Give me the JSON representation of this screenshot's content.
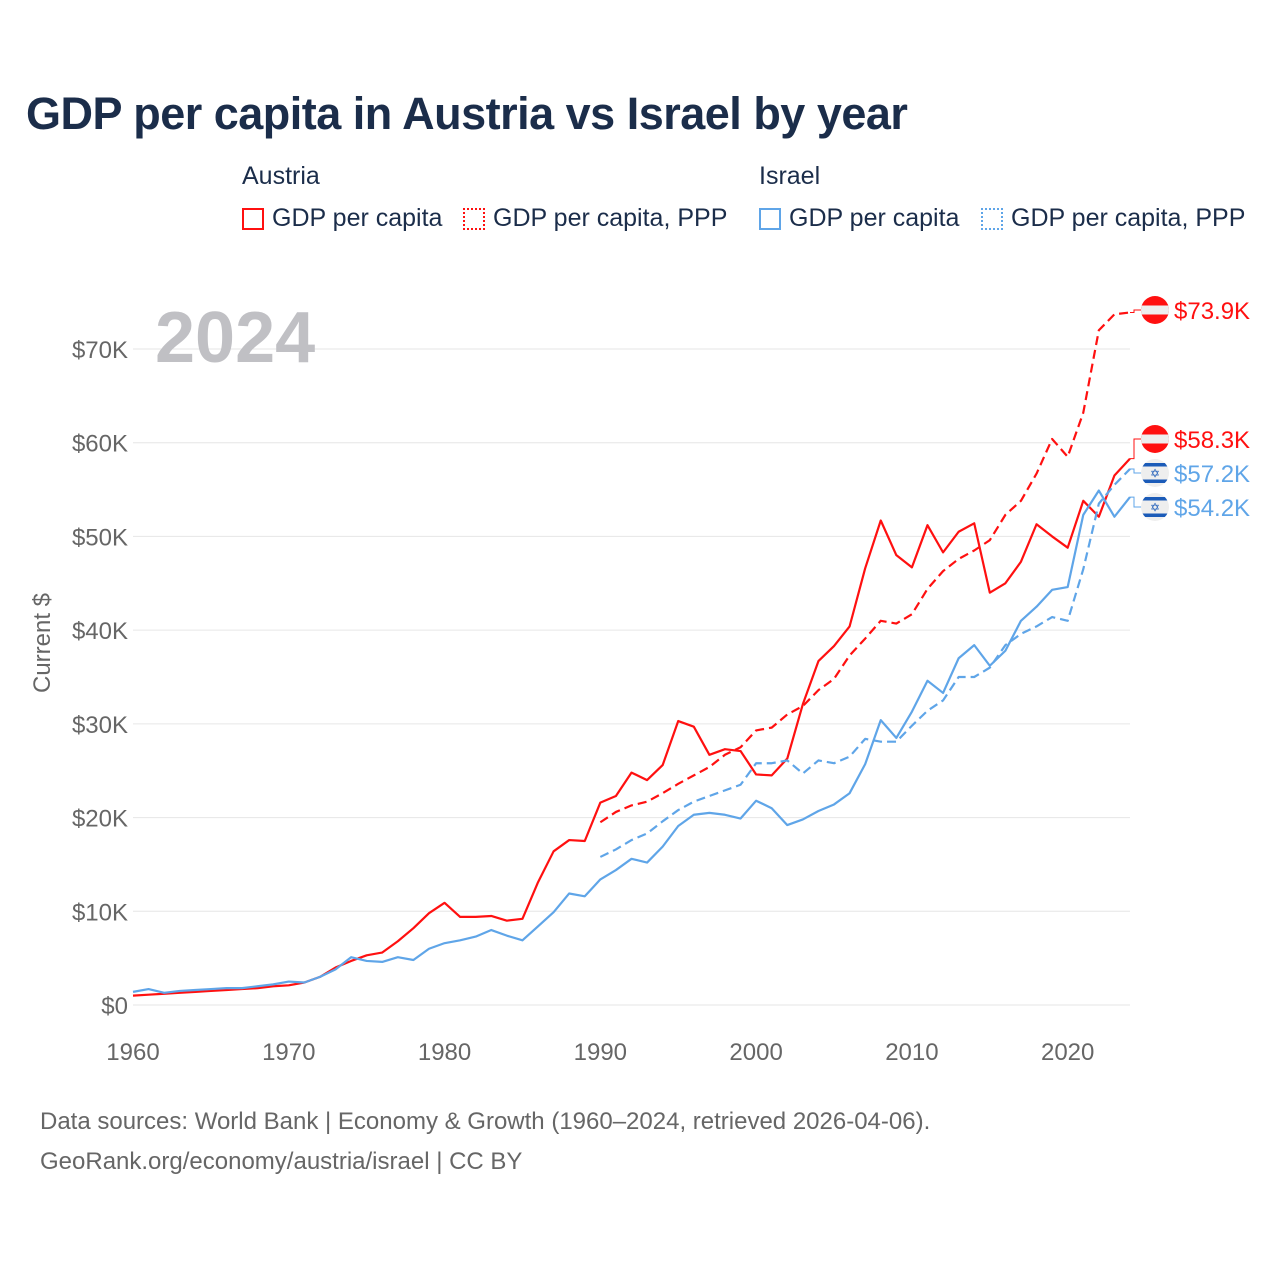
{
  "title": "GDP per capita in Austria vs Israel by year",
  "legend": {
    "groups": [
      {
        "name": "Austria",
        "items": [
          "GDP per capita",
          "GDP per capita, PPP"
        ]
      },
      {
        "name": "Israel",
        "items": [
          "GDP per capita",
          "GDP per capita, PPP"
        ]
      }
    ]
  },
  "year_label": "2024",
  "end_labels": [
    "$73.9K",
    "$58.3K",
    "$57.2K",
    "$54.2K"
  ],
  "source": {
    "line1": "Data sources: World Bank | Economy & Growth (1960–2024, retrieved 2026-04-06).",
    "line2": "GeoRank.org/economy/austria/israel | CC BY"
  },
  "colors": {
    "austria": "#ff1010",
    "israel": "#5fa5e8",
    "grid": "#e6e6e6",
    "axis_text": "#666666"
  },
  "chart_data": {
    "type": "line",
    "title": "GDP per capita in Austria vs Israel by year",
    "xlabel": "",
    "ylabel": "Current $",
    "xlim": [
      1960,
      2024
    ],
    "ylim": [
      0,
      70000
    ],
    "xticks": [
      1960,
      1970,
      1980,
      1990,
      2000,
      2010,
      2020
    ],
    "xtick_labels": [
      "1960",
      "1970",
      "1980",
      "1990",
      "2000",
      "2010",
      "2020"
    ],
    "yticks": [
      0,
      10000,
      20000,
      30000,
      40000,
      50000,
      60000,
      70000
    ],
    "ytick_labels": [
      "$0",
      "$10K",
      "$20K",
      "$30K",
      "$40K",
      "$50K",
      "$60K",
      "$70K"
    ],
    "grid": true,
    "legend_placement": "top",
    "series": [
      {
        "name": "Austria GDP per capita",
        "country": "Austria",
        "dashed": false,
        "start": 1960,
        "values_k": [
          1.0,
          1.1,
          1.2,
          1.3,
          1.4,
          1.5,
          1.6,
          1.7,
          1.8,
          2.0,
          2.1,
          2.4,
          3.0,
          4.0,
          4.7,
          5.3,
          5.6,
          6.8,
          8.2,
          9.8,
          10.9,
          9.4,
          9.4,
          9.5,
          9.0,
          9.2,
          13.1,
          16.4,
          17.6,
          17.5,
          21.6,
          22.3,
          24.8,
          24.0,
          25.6,
          30.3,
          29.7,
          26.7,
          27.3,
          27.1,
          24.6,
          24.5,
          26.3,
          32.1,
          36.7,
          38.3,
          40.4,
          46.6,
          51.7,
          48.0,
          46.7,
          51.2,
          48.3,
          50.5,
          51.4,
          44.0,
          45.0,
          47.3,
          51.3,
          50.0,
          48.8,
          53.8,
          52.1,
          56.5,
          58.3
        ]
      },
      {
        "name": "Austria GDP per capita, PPP",
        "country": "Austria",
        "dashed": true,
        "start": 1990,
        "values_k": [
          19.5,
          20.6,
          21.3,
          21.7,
          22.6,
          23.6,
          24.5,
          25.4,
          26.7,
          27.5,
          29.3,
          29.6,
          31.0,
          31.9,
          33.6,
          34.8,
          37.3,
          39.1,
          41.0,
          40.7,
          41.7,
          44.4,
          46.3,
          47.6,
          48.5,
          49.6,
          52.3,
          53.8,
          56.7,
          60.4,
          58.5,
          63.2,
          72.0,
          73.7,
          73.9
        ]
      },
      {
        "name": "Israel GDP per capita",
        "country": "Israel",
        "dashed": false,
        "start": 1960,
        "values_k": [
          1.4,
          1.7,
          1.3,
          1.5,
          1.6,
          1.7,
          1.8,
          1.8,
          2.0,
          2.2,
          2.5,
          2.4,
          3.0,
          3.8,
          5.1,
          4.7,
          4.6,
          5.1,
          4.8,
          6.0,
          6.6,
          6.9,
          7.3,
          8.0,
          7.4,
          6.9,
          8.4,
          9.9,
          11.9,
          11.6,
          13.4,
          14.4,
          15.6,
          15.2,
          16.9,
          19.1,
          20.3,
          20.5,
          20.3,
          19.9,
          21.8,
          21.0,
          19.2,
          19.8,
          20.7,
          21.4,
          22.6,
          25.7,
          30.4,
          28.5,
          31.3,
          34.6,
          33.3,
          37.0,
          38.4,
          36.2,
          37.8,
          41.0,
          42.5,
          44.3,
          44.6,
          52.3,
          54.9,
          52.1,
          54.2
        ]
      },
      {
        "name": "Israel GDP per capita, PPP",
        "country": "Israel",
        "dashed": true,
        "start": 1990,
        "values_k": [
          15.8,
          16.6,
          17.6,
          18.3,
          19.6,
          20.8,
          21.7,
          22.3,
          22.9,
          23.5,
          25.8,
          25.8,
          26.1,
          24.7,
          26.1,
          25.8,
          26.5,
          28.4,
          28.1,
          28.1,
          29.8,
          31.4,
          32.5,
          35.0,
          35.0,
          36.0,
          38.4,
          39.6,
          40.4,
          41.4,
          41.0,
          46.5,
          53.5,
          55.5,
          57.2
        ]
      }
    ]
  }
}
